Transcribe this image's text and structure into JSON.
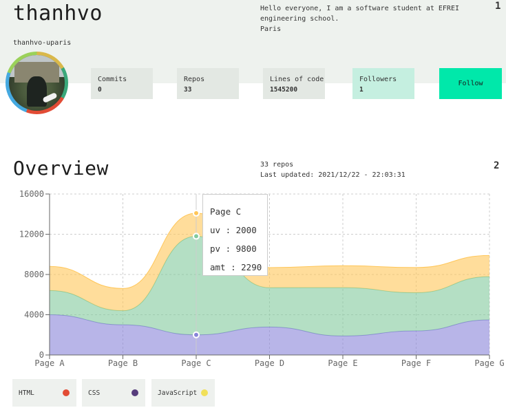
{
  "profile": {
    "username": "thanhvo",
    "handle": "thanhvo-uparis",
    "bio_lines": [
      "Hello everyone, I am a software student at EFREI",
      "engineering school.",
      "Paris"
    ],
    "section_number": "1"
  },
  "stats": [
    {
      "label": "Commits",
      "value": "0"
    },
    {
      "label": "Repos",
      "value": "33"
    },
    {
      "label": "Lines of code",
      "value": "1545200"
    },
    {
      "label": "Followers",
      "value": "1"
    }
  ],
  "follow_label": "Follow",
  "overview": {
    "title": "Overview",
    "repo_count": "33 repos",
    "last_updated": "Last updated: 2021/12/22 - 22:03:31",
    "section_number": "2"
  },
  "tooltip": {
    "title": "Page C",
    "uv": "uv : 2000",
    "pv": "pv : 9800",
    "amt": "amt : 2290"
  },
  "chart_data": {
    "type": "area",
    "categories": [
      "Page A",
      "Page B",
      "Page C",
      "Page D",
      "Page E",
      "Page F",
      "Page G"
    ],
    "series": [
      {
        "values": [
          4000,
          3000,
          2000,
          2780,
          1890,
          2390,
          3490
        ],
        "color": "#8884d8"
      },
      {
        "values": [
          2400,
          1398,
          9800,
          3908,
          4800,
          3800,
          4300
        ],
        "color": "#82ca9d"
      },
      {
        "values": [
          2400,
          2210,
          2290,
          2000,
          2181,
          2500,
          2100
        ],
        "color": "#ffc658"
      }
    ],
    "stacked": true,
    "ylim": [
      0,
      16000
    ],
    "yticks": [
      0,
      4000,
      8000,
      12000,
      16000
    ],
    "grid": true,
    "active_index": 2
  },
  "legend": [
    {
      "label": "HTML",
      "color": "#e24c35"
    },
    {
      "label": "CSS",
      "color": "#563d7c"
    },
    {
      "label": "JavaScript",
      "color": "#f1e05a"
    }
  ]
}
